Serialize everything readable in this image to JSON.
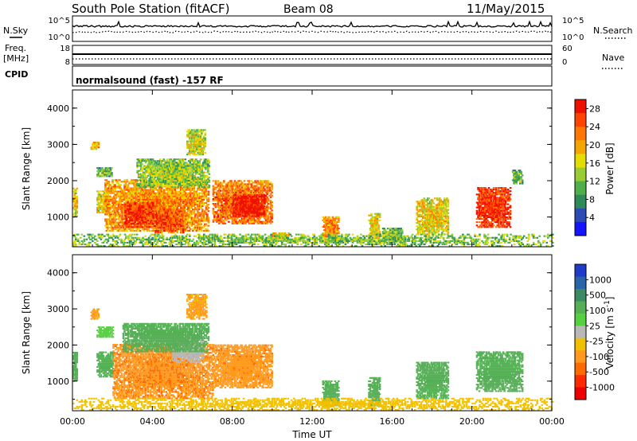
{
  "header": {
    "station": "South Pole Station (fitACF)",
    "beam": "Beam 08",
    "date": "11/May/2015"
  },
  "params": {
    "nsky_label": "N.Sky",
    "nsky_ticks": [
      "10^5",
      "10^0"
    ],
    "nsearch_label": "N.Search",
    "nsearch_ticks": [
      "10^5",
      "10^0"
    ],
    "freq_label": "Freq.",
    "freq_unit": "[MHz]",
    "freq_ticks": [
      "18",
      "8"
    ],
    "nave_label": "Nave",
    "nave_ticks": [
      "60",
      "0"
    ],
    "cpid_label": "CPID",
    "cpid_text": "normalsound (fast) -157 RF"
  },
  "chart_data": [
    {
      "type": "heatmap",
      "title": "Power",
      "xlabel": "Time UT",
      "ylabel": "Slant Range [km]",
      "x_ticks": [
        "00:00",
        "04:00",
        "08:00",
        "12:00",
        "16:00",
        "20:00",
        "00:00"
      ],
      "xlim_hours": [
        0,
        24
      ],
      "y_ticks": [
        "1000",
        "2000",
        "3000",
        "4000"
      ],
      "ylim_km": [
        180,
        4500
      ],
      "colorbar": {
        "label": "Power [dB]",
        "ticks": [
          "4",
          "8",
          "12",
          "16",
          "20",
          "24",
          "28"
        ],
        "range": [
          0,
          30
        ],
        "colors": [
          "#1414ff",
          "#2c4bb4",
          "#2f8a5a",
          "#4fb04a",
          "#99cc33",
          "#e6dd00",
          "#f5a500",
          "#ff7700",
          "#ff4400",
          "#ee1100"
        ]
      },
      "echo_regions": [
        {
          "t": [
            0.0,
            0.2
          ],
          "r": [
            1000,
            1800
          ],
          "v": 14
        },
        {
          "t": [
            0.9,
            1.3
          ],
          "r": [
            2850,
            3050
          ],
          "v": 16
        },
        {
          "t": [
            1.2,
            2.0
          ],
          "r": [
            2100,
            2350
          ],
          "v": 8
        },
        {
          "t": [
            1.2,
            1.9
          ],
          "r": [
            1100,
            1700
          ],
          "v": 14
        },
        {
          "t": [
            1.6,
            6.8
          ],
          "r": [
            600,
            2000
          ],
          "v": 18
        },
        {
          "t": [
            2.6,
            4.0
          ],
          "r": [
            700,
            1400
          ],
          "v": 24
        },
        {
          "t": [
            4.0,
            5.5
          ],
          "r": [
            550,
            1200
          ],
          "v": 22
        },
        {
          "t": [
            3.2,
            6.8
          ],
          "r": [
            1800,
            2600
          ],
          "v": 10
        },
        {
          "t": [
            5.7,
            6.6
          ],
          "r": [
            2700,
            3400
          ],
          "v": 12
        },
        {
          "t": [
            7.0,
            10.0
          ],
          "r": [
            800,
            2000
          ],
          "v": 20
        },
        {
          "t": [
            8.0,
            9.6
          ],
          "r": [
            1000,
            1600
          ],
          "v": 26
        },
        {
          "t": [
            10.0,
            10.8
          ],
          "r": [
            350,
            550
          ],
          "v": 16
        },
        {
          "t": [
            12.5,
            13.3
          ],
          "r": [
            300,
            1000
          ],
          "v": 18
        },
        {
          "t": [
            14.8,
            15.4
          ],
          "r": [
            300,
            1100
          ],
          "v": 14
        },
        {
          "t": [
            15.5,
            16.5
          ],
          "r": [
            300,
            700
          ],
          "v": 8
        },
        {
          "t": [
            17.2,
            18.8
          ],
          "r": [
            500,
            1500
          ],
          "v": 14
        },
        {
          "t": [
            20.2,
            21.9
          ],
          "r": [
            700,
            1800
          ],
          "v": 24
        },
        {
          "t": [
            22.0,
            22.5
          ],
          "r": [
            1900,
            2300
          ],
          "v": 8
        },
        {
          "t": [
            0.0,
            24.0
          ],
          "r": [
            180,
            500
          ],
          "v": 12
        }
      ]
    },
    {
      "type": "heatmap",
      "title": "Velocity",
      "xlabel": "Time UT",
      "ylabel": "Slant Range [km]",
      "x_ticks": [
        "00:00",
        "04:00",
        "08:00",
        "12:00",
        "16:00",
        "20:00",
        "00:00"
      ],
      "xlim_hours": [
        0,
        24
      ],
      "y_ticks": [
        "1000",
        "2000",
        "3000",
        "4000"
      ],
      "ylim_km": [
        180,
        4500
      ],
      "colorbar": {
        "label": "Velocity [m s^-1]",
        "ticks": [
          "1000",
          "500",
          "100",
          "25",
          "-25",
          "-100",
          "-500",
          "-1000"
        ],
        "colors": [
          "#1e3cc8",
          "#2a64a8",
          "#3b8a64",
          "#55b055",
          "#55d040",
          "#b8b8b8",
          "#f0c000",
          "#ff9a1e",
          "#ff6a00",
          "#ff2a00",
          "#ee0000"
        ]
      },
      "echo_regions": [
        {
          "t": [
            0.0,
            0.2
          ],
          "r": [
            1000,
            1800
          ],
          "v": 200
        },
        {
          "t": [
            0.9,
            1.3
          ],
          "r": [
            2700,
            3000
          ],
          "v": -150
        },
        {
          "t": [
            1.2,
            2.0
          ],
          "r": [
            2200,
            2500
          ],
          "v": 50
        },
        {
          "t": [
            1.2,
            2.0
          ],
          "r": [
            1100,
            1800
          ],
          "v": 250
        },
        {
          "t": [
            2.0,
            7.0
          ],
          "r": [
            500,
            2000
          ],
          "v": -400
        },
        {
          "t": [
            5.0,
            6.5
          ],
          "r": [
            1500,
            2300
          ],
          "v": -10
        },
        {
          "t": [
            2.5,
            6.8
          ],
          "r": [
            1800,
            2600
          ],
          "v": 200
        },
        {
          "t": [
            5.7,
            6.7
          ],
          "r": [
            2700,
            3400
          ],
          "v": -150
        },
        {
          "t": [
            7.0,
            10.0
          ],
          "r": [
            800,
            2000
          ],
          "v": -350
        },
        {
          "t": [
            12.5,
            13.3
          ],
          "r": [
            300,
            1000
          ],
          "v": 200
        },
        {
          "t": [
            14.8,
            15.4
          ],
          "r": [
            300,
            1100
          ],
          "v": 200
        },
        {
          "t": [
            17.2,
            18.8
          ],
          "r": [
            500,
            1500
          ],
          "v": 300
        },
        {
          "t": [
            20.2,
            22.5
          ],
          "r": [
            700,
            1800
          ],
          "v": 250
        },
        {
          "t": [
            0.0,
            24.0
          ],
          "r": [
            180,
            500
          ],
          "v": -60
        }
      ]
    }
  ]
}
